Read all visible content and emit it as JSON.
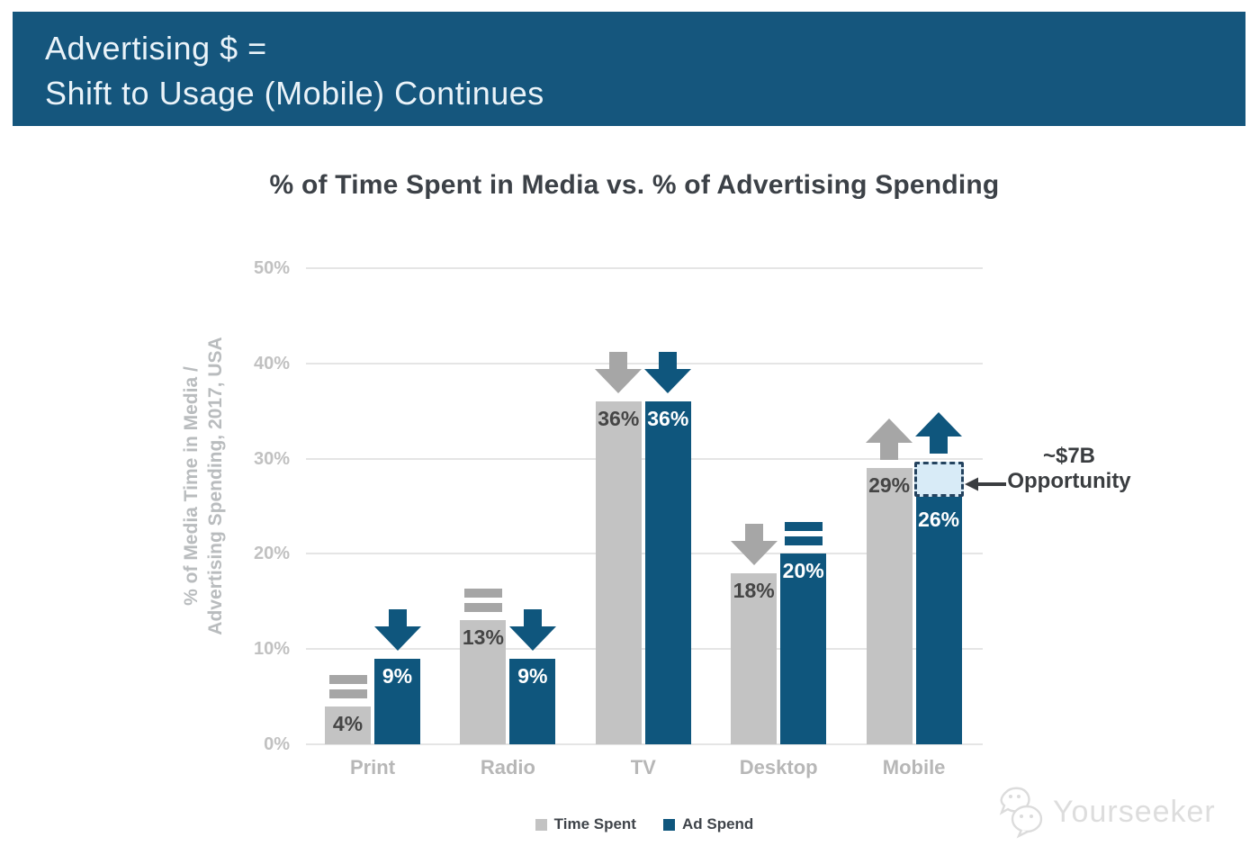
{
  "banner": {
    "line1": "Advertising $ =",
    "line2": "Shift to Usage (Mobile) Continues",
    "bg_color": "#15567D"
  },
  "chart_data": {
    "type": "bar",
    "title": "% of Time Spent in Media vs. % of Advertising Spending",
    "ylabel": "% of Media Time in Media / Advertising Spending, 2017, USA",
    "ylabel_lines": [
      "% of Media Time in Media /",
      "Advertising Spending, 2017, USA"
    ],
    "ylim": [
      0,
      50
    ],
    "yticks": [
      {
        "value": 50,
        "label": "50%"
      },
      {
        "value": 40,
        "label": "40%"
      },
      {
        "value": 30,
        "label": "30%"
      },
      {
        "value": 20,
        "label": "20%"
      },
      {
        "value": 10,
        "label": "10%"
      },
      {
        "value": 0,
        "label": "0%"
      }
    ],
    "grid": true,
    "legend_position": "bottom",
    "categories": [
      "Print",
      "Radio",
      "TV",
      "Desktop",
      "Mobile"
    ],
    "series": [
      {
        "name": "Time Spent",
        "color": "#C3C3C3",
        "marker_color": "#A6A6A6",
        "label_color": "#454545",
        "values": [
          4,
          13,
          36,
          18,
          29
        ],
        "data_labels": [
          "4%",
          "13%",
          "36%",
          "18%",
          "29%"
        ],
        "trend_markers": [
          "equal",
          "equal",
          "down",
          "down",
          "up"
        ]
      },
      {
        "name": "Ad Spend",
        "color": "#0F567D",
        "marker_color": "#0F567D",
        "label_color": "#FFFFFF",
        "values": [
          9,
          9,
          36,
          20,
          26
        ],
        "data_labels": [
          "9%",
          "9%",
          "36%",
          "20%",
          "26%"
        ],
        "trend_markers": [
          "down",
          "down",
          "down",
          "equal",
          "up"
        ]
      }
    ],
    "annotation": {
      "line1": "~$7B",
      "line2": "Opportunity"
    },
    "opportunity_box": {
      "category": "Mobile",
      "series": "Ad Spend",
      "from": 26,
      "to": 29.7,
      "fill": "#D8EBF7",
      "border_color": "#24435F"
    },
    "grid_color": "#E5E5E5"
  },
  "watermark": {
    "text": "Yourseeker"
  }
}
